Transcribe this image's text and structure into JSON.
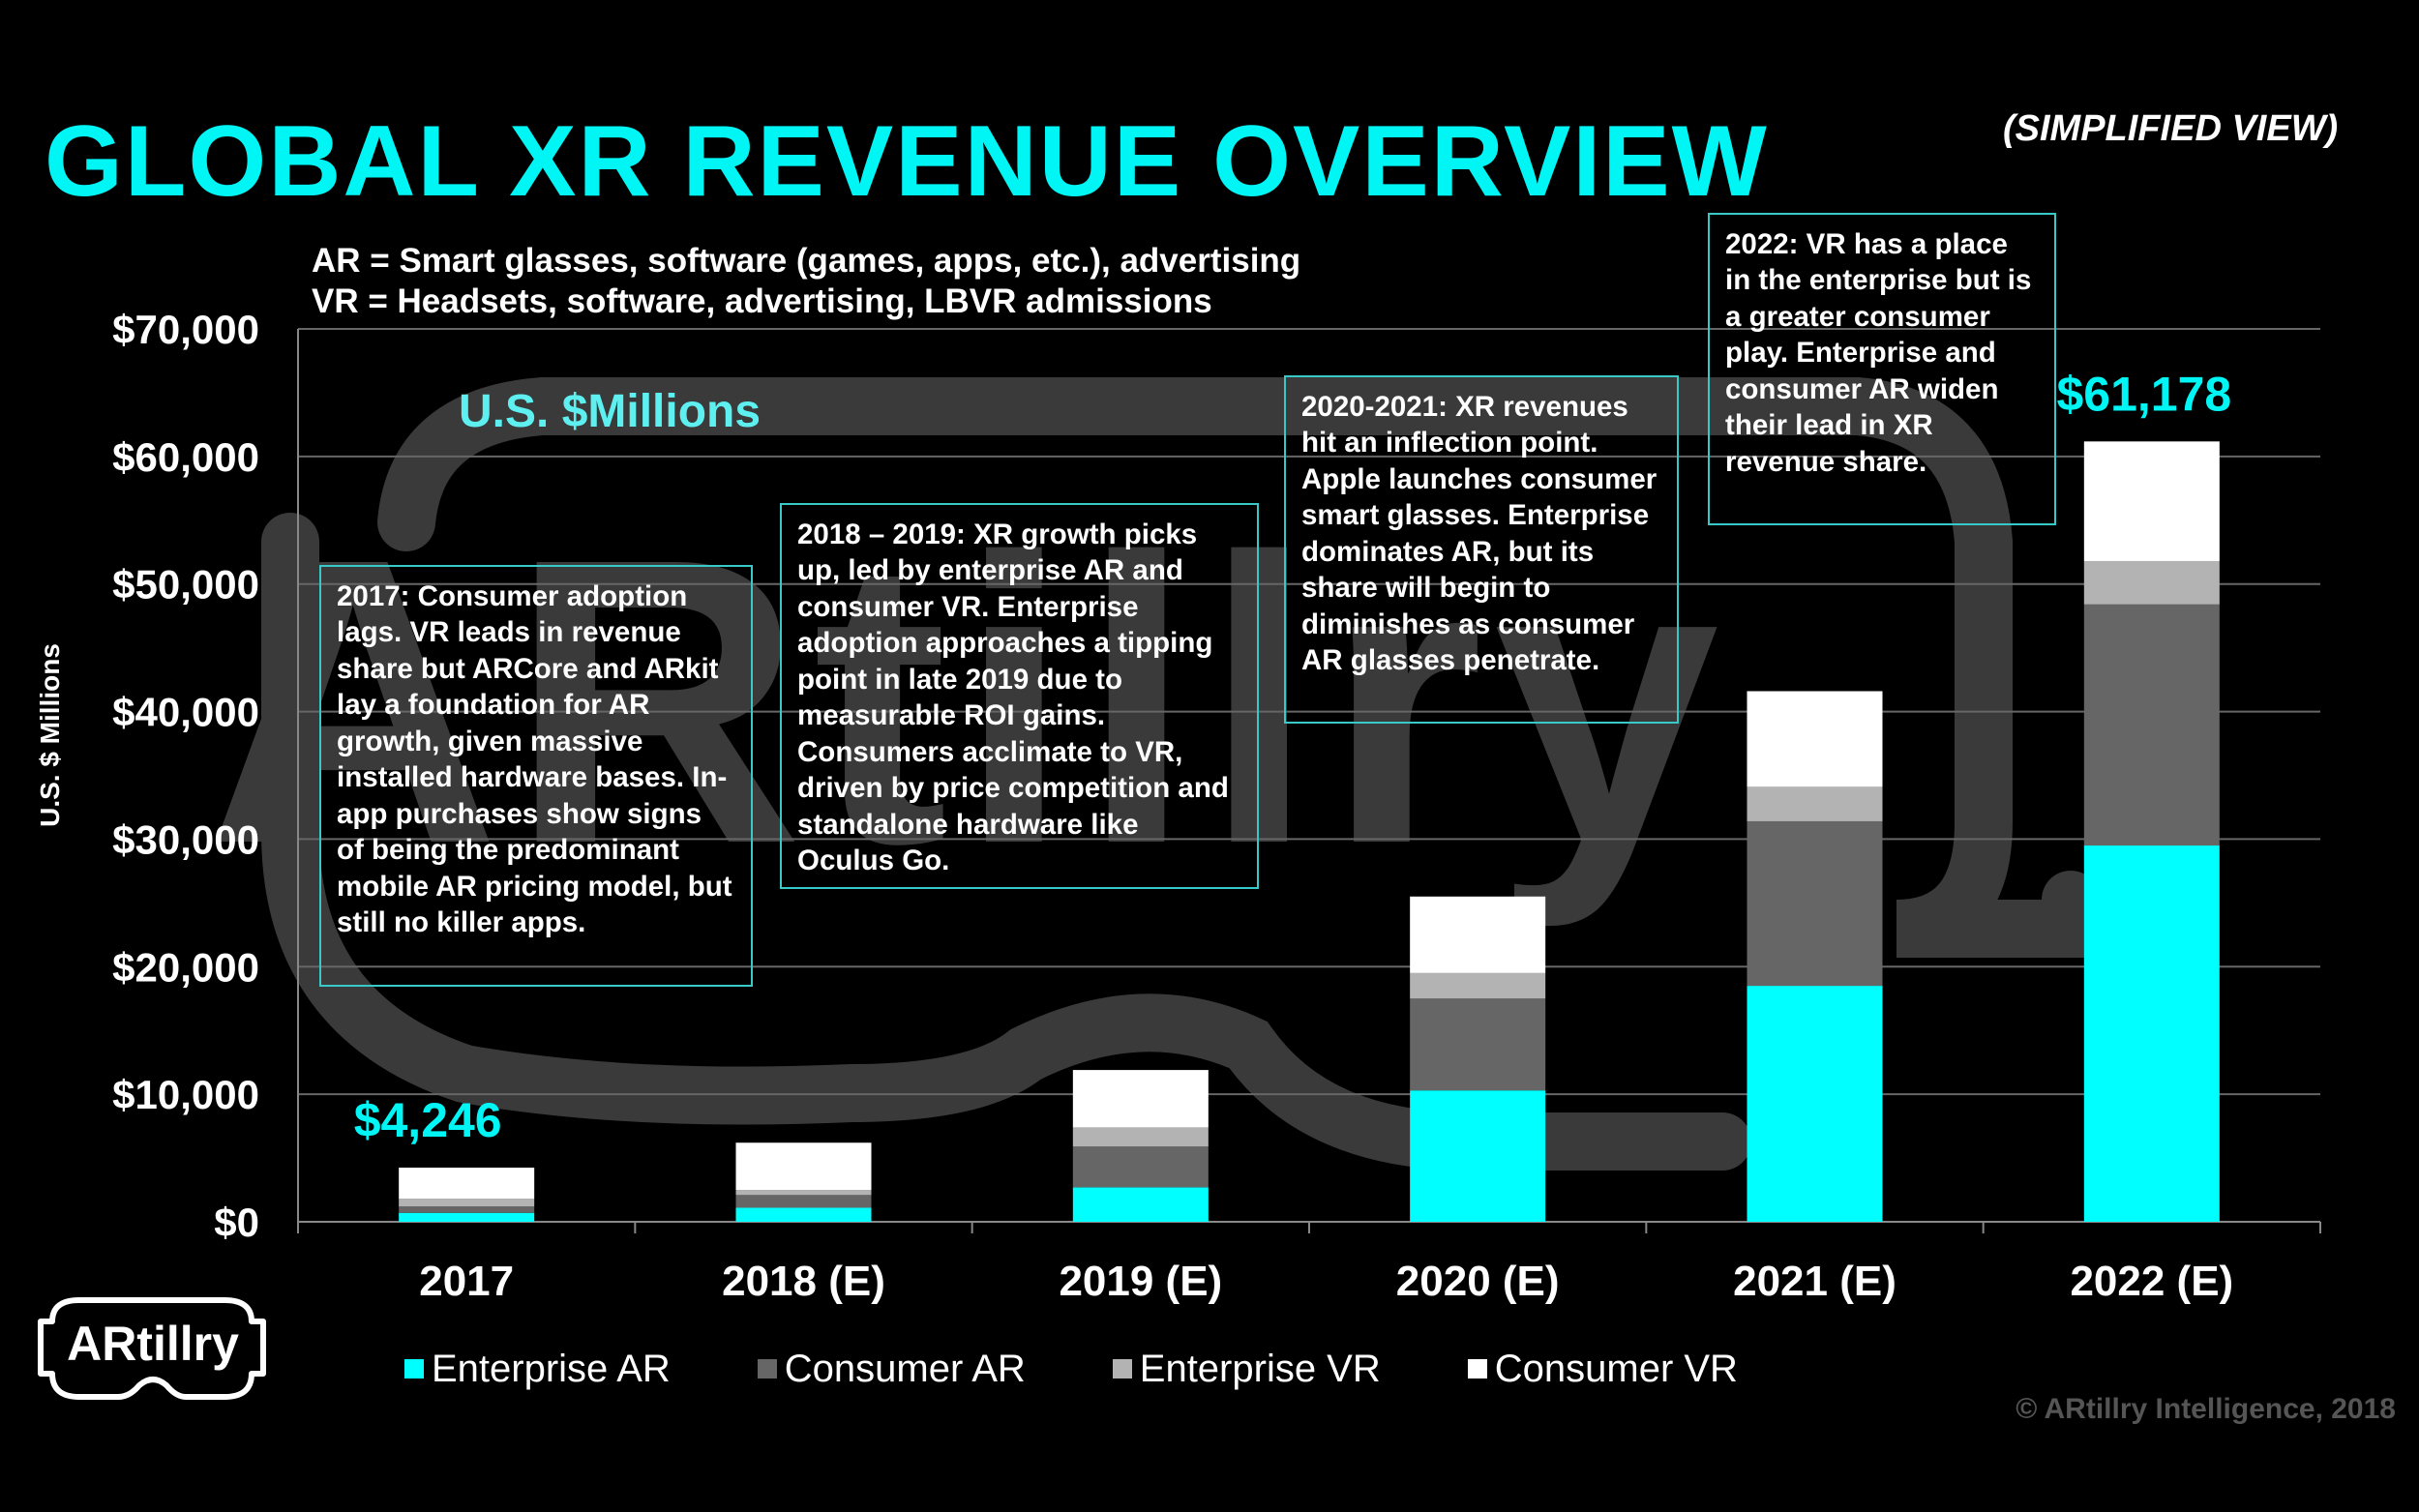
{
  "header": {
    "title": "GLOBAL XR REVENUE OVERVIEW",
    "subtitle": "(SIMPLIFIED VIEW)"
  },
  "definitions": {
    "ar": "AR = Smart glasses, software (games, apps, etc.), advertising",
    "vr": "VR = Headsets, software, advertising, LBVR admissions"
  },
  "unit_label": "U.S. $Millions",
  "notes": {
    "n2017": "2017: Consumer adoption lags. VR leads in revenue share but  ARCore and ARkit lay a foundation for AR growth, given massive installed hardware bases. In-app purchases show signs of being the predominant mobile AR pricing model, but still no killer apps.",
    "n2018": "2018 – 2019: XR growth picks up, led by enterprise AR and consumer VR.  Enterprise adoption approaches a tipping point in late 2019 due to measurable ROI gains. Consumers acclimate to VR, driven by price competition and standalone hardware like Oculus Go.",
    "n2020": "2020-2021: XR revenues hit an inflection point. Apple launches consumer smart glasses. Enterprise dominates AR, but its share will begin to diminishes as consumer AR glasses penetrate.",
    "n2022": "2022: VR has a place in the enterprise but is a greater consumer play. Enterprise and consumer AR widen their lead in XR revenue share."
  },
  "logo_text": "ARtillry",
  "copyright": "© ARtillry Intelligence, 2018",
  "colors": {
    "accent": "#00f5f5",
    "enterprise_ar": "#00ffff",
    "consumer_ar": "#666666",
    "enterprise_vr": "#b3b3b3",
    "consumer_vr": "#ffffff",
    "grid": "#666666"
  },
  "chart_data": {
    "type": "bar",
    "stacked": true,
    "title": "GLOBAL XR REVENUE OVERVIEW",
    "ylabel": "U.S. $ Millions",
    "xlabel": "",
    "ylim": [
      0,
      70000
    ],
    "yticks": [
      0,
      10000,
      20000,
      30000,
      40000,
      50000,
      60000,
      70000
    ],
    "ytick_labels": [
      "$0",
      "$10,000",
      "$20,000",
      "$30,000",
      "$40,000",
      "$50,000",
      "$60,000",
      "$70,000"
    ],
    "grid": true,
    "legend_position": "bottom",
    "categories": [
      "2017",
      "2018 (E)",
      "2019 (E)",
      "2020 (E)",
      "2021 (E)",
      "2022 (E)"
    ],
    "series": [
      {
        "name": "Enterprise AR",
        "color": "#00ffff",
        "values": [
          700,
          1100,
          2700,
          10300,
          18500,
          29500
        ]
      },
      {
        "name": "Consumer AR",
        "color": "#666666",
        "values": [
          500,
          1000,
          3200,
          7200,
          12900,
          18900
        ]
      },
      {
        "name": "Enterprise VR",
        "color": "#b3b3b3",
        "values": [
          600,
          400,
          1500,
          2000,
          2700,
          3400
        ]
      },
      {
        "name": "Consumer VR",
        "color": "#ffffff",
        "values": [
          2446,
          3700,
          4500,
          6000,
          7500,
          9378
        ]
      }
    ],
    "annotations": [
      {
        "category": "2017",
        "text": "$4,246"
      },
      {
        "category": "2022 (E)",
        "text": "$61,178"
      }
    ]
  }
}
